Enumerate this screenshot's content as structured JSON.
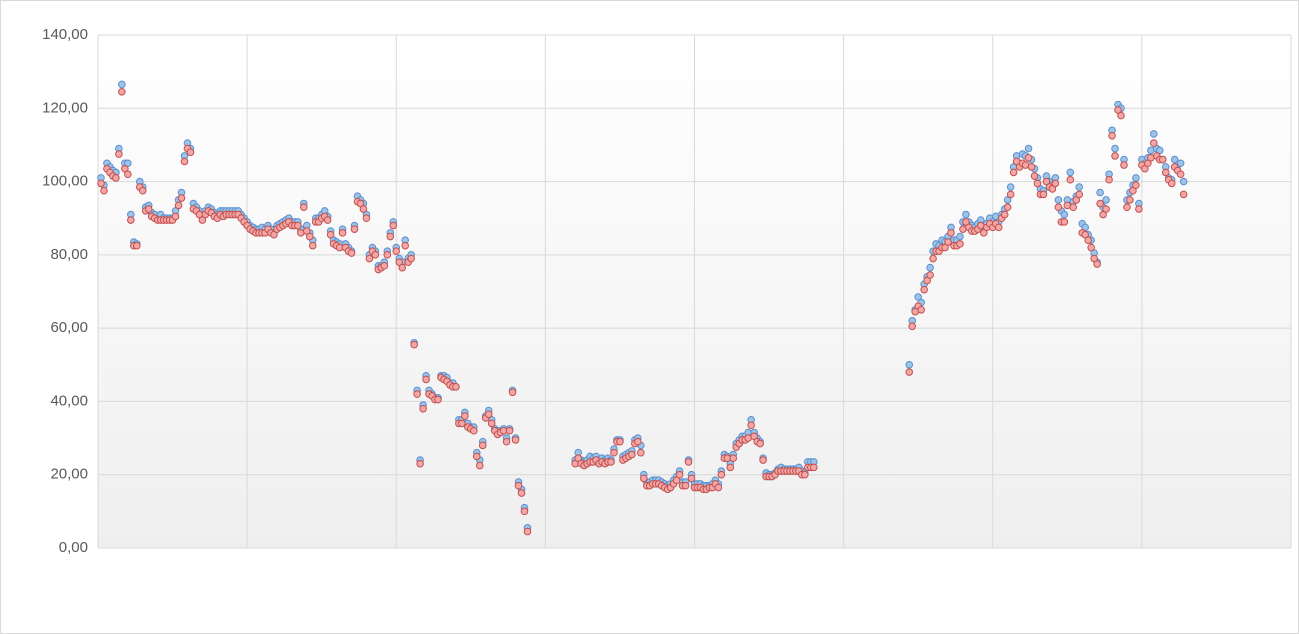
{
  "chart_data": {
    "type": "scatter",
    "x": [
      1,
      2,
      3,
      4,
      5,
      6,
      7,
      8,
      9,
      10,
      11,
      12,
      13,
      14,
      15,
      16,
      17,
      18,
      19,
      20,
      21,
      22,
      23,
      24,
      25,
      26,
      27,
      28,
      29,
      30,
      31,
      32,
      33,
      34,
      35,
      36,
      37,
      38,
      39,
      40,
      41,
      42,
      43,
      44,
      45,
      46,
      47,
      48,
      49,
      50,
      51,
      52,
      53,
      54,
      55,
      56,
      57,
      58,
      59,
      60,
      61,
      62,
      63,
      64,
      65,
      66,
      67,
      68,
      69,
      70,
      71,
      72,
      73,
      74,
      75,
      76,
      77,
      78,
      79,
      80,
      81,
      82,
      83,
      84,
      85,
      86,
      87,
      88,
      89,
      90,
      91,
      92,
      93,
      94,
      95,
      96,
      97,
      98,
      99,
      100,
      101,
      102,
      103,
      104,
      105,
      106,
      107,
      108,
      109,
      110,
      111,
      112,
      113,
      114,
      115,
      116,
      117,
      118,
      119,
      120,
      121,
      122,
      123,
      124,
      125,
      126,
      127,
      128,
      129,
      130,
      131,
      132,
      133,
      134,
      135,
      136,
      137,
      138,
      139,
      140,
      141,
      142,
      143,
      144,
      160,
      161,
      162,
      163,
      164,
      165,
      166,
      167,
      168,
      169,
      170,
      171,
      172,
      173,
      174,
      175,
      176,
      177,
      178,
      179,
      180,
      181,
      182,
      183,
      184,
      185,
      186,
      187,
      188,
      189,
      190,
      191,
      192,
      193,
      194,
      195,
      196,
      197,
      198,
      199,
      200,
      201,
      202,
      203,
      204,
      205,
      206,
      207,
      208,
      209,
      210,
      211,
      212,
      213,
      214,
      215,
      216,
      217,
      218,
      219,
      220,
      221,
      222,
      223,
      224,
      225,
      226,
      227,
      228,
      229,
      230,
      231,
      232,
      233,
      234,
      235,
      236,
      237,
      238,
      239,
      240,
      272,
      273,
      274,
      275,
      276,
      277,
      278,
      279,
      280,
      281,
      282,
      283,
      284,
      285,
      286,
      287,
      288,
      289,
      290,
      291,
      292,
      293,
      294,
      295,
      296,
      297,
      298,
      299,
      300,
      301,
      302,
      303,
      304,
      305,
      306,
      307,
      308,
      309,
      310,
      311,
      312,
      313,
      314,
      315,
      316,
      317,
      318,
      319,
      320,
      321,
      322,
      323,
      324,
      325,
      326,
      327,
      328,
      329,
      330,
      331,
      332,
      333,
      334,
      335,
      336,
      337,
      338,
      339,
      340,
      341,
      342,
      343,
      344,
      345,
      346,
      347,
      348,
      349,
      350,
      351,
      352,
      353,
      354,
      355,
      356,
      357,
      358,
      359,
      360,
      361,
      362,
      363,
      364
    ],
    "series": [
      {
        "color": "#9dc3e6",
        "stroke": "#5b8fd0",
        "values": [
          101,
          99,
          105,
          104,
          103,
          102.5,
          109,
          126.5,
          105,
          105,
          91,
          83.5,
          83,
          100,
          98.5,
          93,
          93.5,
          91.5,
          91,
          90,
          91,
          90,
          90,
          90,
          90,
          92,
          95,
          97,
          107,
          110.5,
          109,
          94,
          93,
          92,
          90.5,
          92,
          93,
          92.5,
          91.5,
          91,
          92,
          92,
          92,
          92,
          92,
          92,
          92,
          91,
          90,
          89,
          88,
          87.5,
          87,
          87,
          87.5,
          87,
          88,
          87,
          86,
          88,
          88.5,
          89,
          89.5,
          90,
          89,
          89,
          89,
          87,
          94,
          88,
          86,
          84,
          90,
          90,
          91,
          92,
          90.5,
          86.5,
          84,
          83.5,
          83,
          87,
          83,
          82,
          81,
          88,
          96,
          95,
          94,
          91,
          80,
          82,
          81,
          77,
          77,
          78,
          81,
          86,
          89,
          82,
          79,
          78,
          84,
          79,
          80,
          56,
          43,
          24,
          39,
          47,
          43,
          42,
          41,
          41,
          47,
          47,
          46.5,
          45,
          45,
          44,
          35,
          35,
          37,
          34,
          33,
          33,
          26,
          24,
          29,
          36,
          37.5,
          35,
          32.5,
          32,
          32,
          32.5,
          30,
          32.5,
          43,
          30,
          18,
          16,
          11,
          5.5,
          24,
          26,
          24,
          23.5,
          24,
          25,
          24.5,
          25,
          24,
          24.5,
          24,
          24.5,
          24,
          27,
          29.5,
          29.5,
          25,
          25.5,
          26,
          26.5,
          29.5,
          30,
          28,
          20,
          18,
          18,
          18.5,
          18.5,
          18.5,
          18,
          17.5,
          17,
          17.5,
          18.5,
          19.5,
          21,
          18,
          18,
          24,
          20,
          17.5,
          17.5,
          17.5,
          17,
          17,
          17,
          17.5,
          18.5,
          17.5,
          21,
          25.5,
          25,
          23,
          25.5,
          28.5,
          29.5,
          30.5,
          30.5,
          31.5,
          35,
          31.5,
          30,
          29,
          24.5,
          20.5,
          20,
          20,
          20.5,
          21.5,
          22,
          21.5,
          21.5,
          21.5,
          21.5,
          21.5,
          22,
          21,
          20.5,
          23.5,
          23.5,
          23.5,
          50,
          62,
          65,
          68.5,
          67,
          72,
          74,
          76.5,
          81,
          83,
          82.5,
          84,
          83.5,
          85,
          87.5,
          84,
          84,
          85,
          89,
          91,
          89,
          88,
          87.5,
          88.5,
          89.5,
          87,
          88.5,
          90,
          89,
          90.5,
          89,
          91,
          92.5,
          95,
          98.5,
          104,
          107,
          105,
          107.5,
          107,
          109,
          106,
          103.5,
          101,
          98,
          97.5,
          101.5,
          100,
          99,
          101,
          95,
          92,
          91,
          95,
          102.5,
          94.5,
          96,
          98.5,
          88.5,
          87.5,
          85.5,
          84,
          80.5,
          78,
          97,
          93,
          95,
          102,
          114,
          109,
          121,
          120,
          106,
          95,
          97,
          99,
          101,
          94,
          106,
          105,
          106.5,
          108.5,
          113,
          109,
          108.5,
          106,
          104,
          101,
          100.5,
          106,
          104.5,
          105,
          100
        ]
      },
      {
        "color": "#f4a6a6",
        "stroke": "#c0504d",
        "values": [
          99.5,
          97.5,
          103.5,
          102.5,
          101.5,
          101,
          107.5,
          124.5,
          103.5,
          102,
          89.5,
          82.5,
          82.5,
          98.5,
          97.5,
          92,
          92.5,
          90.5,
          90,
          89.5,
          89.5,
          89.5,
          89.5,
          89.5,
          89.5,
          90.5,
          93.5,
          95.5,
          105.5,
          109,
          108,
          92.5,
          92,
          91,
          89.5,
          91,
          92,
          91.5,
          90.5,
          90,
          91,
          90.5,
          91,
          91,
          91,
          91,
          91,
          90,
          89,
          88,
          87,
          86.5,
          86,
          86,
          86,
          86,
          87,
          86,
          85.5,
          87,
          87.5,
          88,
          88.5,
          89,
          88,
          88,
          88,
          86,
          93,
          86.5,
          85,
          82.5,
          89,
          89,
          90,
          90.5,
          89.5,
          85.5,
          83,
          82.5,
          82,
          86,
          82,
          81,
          80.5,
          87,
          94.5,
          94,
          92.5,
          90,
          79,
          81,
          80,
          76,
          76.5,
          77,
          80,
          85,
          88,
          81,
          78,
          76.5,
          82.5,
          78,
          79,
          55.5,
          42,
          23,
          38,
          46,
          42,
          41.5,
          40.5,
          40.5,
          46.5,
          46,
          45.5,
          44.5,
          44,
          44,
          34,
          34,
          36,
          33,
          32.5,
          32,
          25,
          22.5,
          28,
          35.5,
          36.5,
          34,
          32,
          31,
          31.5,
          32,
          29,
          32,
          42.5,
          29.5,
          17,
          15,
          10,
          4.5,
          23,
          24.5,
          23,
          22.5,
          23,
          23.5,
          23.5,
          24,
          23,
          23.5,
          23,
          23.5,
          23.5,
          26,
          29,
          29,
          24,
          24.5,
          25,
          25.5,
          28.5,
          29,
          26,
          19,
          17,
          17,
          17.5,
          17.5,
          17.5,
          17,
          16.5,
          16,
          16.5,
          17.5,
          18.5,
          20,
          17,
          17,
          23.5,
          19,
          16.5,
          16.5,
          16.5,
          16,
          16,
          16.5,
          16.5,
          17.5,
          16.5,
          20,
          24.5,
          24.5,
          22,
          24.5,
          27.5,
          28.5,
          29.5,
          29.5,
          30,
          33.5,
          30.5,
          29,
          28.5,
          24,
          19.5,
          19.5,
          19.5,
          20,
          21,
          21,
          21,
          21,
          21,
          21,
          21,
          21,
          20,
          20,
          22,
          22,
          22,
          48,
          60.5,
          64.5,
          66,
          65,
          70.5,
          73,
          74.5,
          79,
          81,
          81,
          82,
          82,
          83.5,
          86,
          82.5,
          82.5,
          83,
          87,
          89,
          87.5,
          86.5,
          86.5,
          87,
          88,
          86,
          87.5,
          88.5,
          87.5,
          88.5,
          87.5,
          90,
          91,
          93,
          96.5,
          102.5,
          105.5,
          104,
          105,
          104.5,
          106.5,
          104,
          101.5,
          99.5,
          96.5,
          96.5,
          100,
          98.5,
          98,
          99.5,
          93,
          89,
          89,
          93.5,
          100.5,
          93,
          95,
          96.5,
          86,
          85.5,
          84,
          82,
          79,
          77.5,
          94,
          91,
          92.5,
          100.5,
          112.5,
          107,
          119.5,
          118,
          104.5,
          93,
          95,
          97.5,
          99,
          92.5,
          104.5,
          103.5,
          105,
          106.5,
          110.5,
          107,
          106,
          106,
          102.5,
          100.5,
          99.5,
          104,
          103,
          102,
          96.5
        ]
      }
    ],
    "xlim": [
      0,
      400
    ],
    "xticks": [
      0,
      50,
      100,
      150,
      200,
      250,
      300,
      350,
      400
    ],
    "ylim": [
      0,
      140
    ],
    "yticks": [
      {
        "value": 0,
        "label": "0,00"
      },
      {
        "value": 20,
        "label": "20,00"
      },
      {
        "value": 40,
        "label": "40,00"
      },
      {
        "value": 60,
        "label": "60,00"
      },
      {
        "value": 80,
        "label": "80,00"
      },
      {
        "value": 100,
        "label": "100,00"
      },
      {
        "value": 120,
        "label": "120,00"
      },
      {
        "value": 140,
        "label": "140,00"
      }
    ],
    "grid": true
  }
}
